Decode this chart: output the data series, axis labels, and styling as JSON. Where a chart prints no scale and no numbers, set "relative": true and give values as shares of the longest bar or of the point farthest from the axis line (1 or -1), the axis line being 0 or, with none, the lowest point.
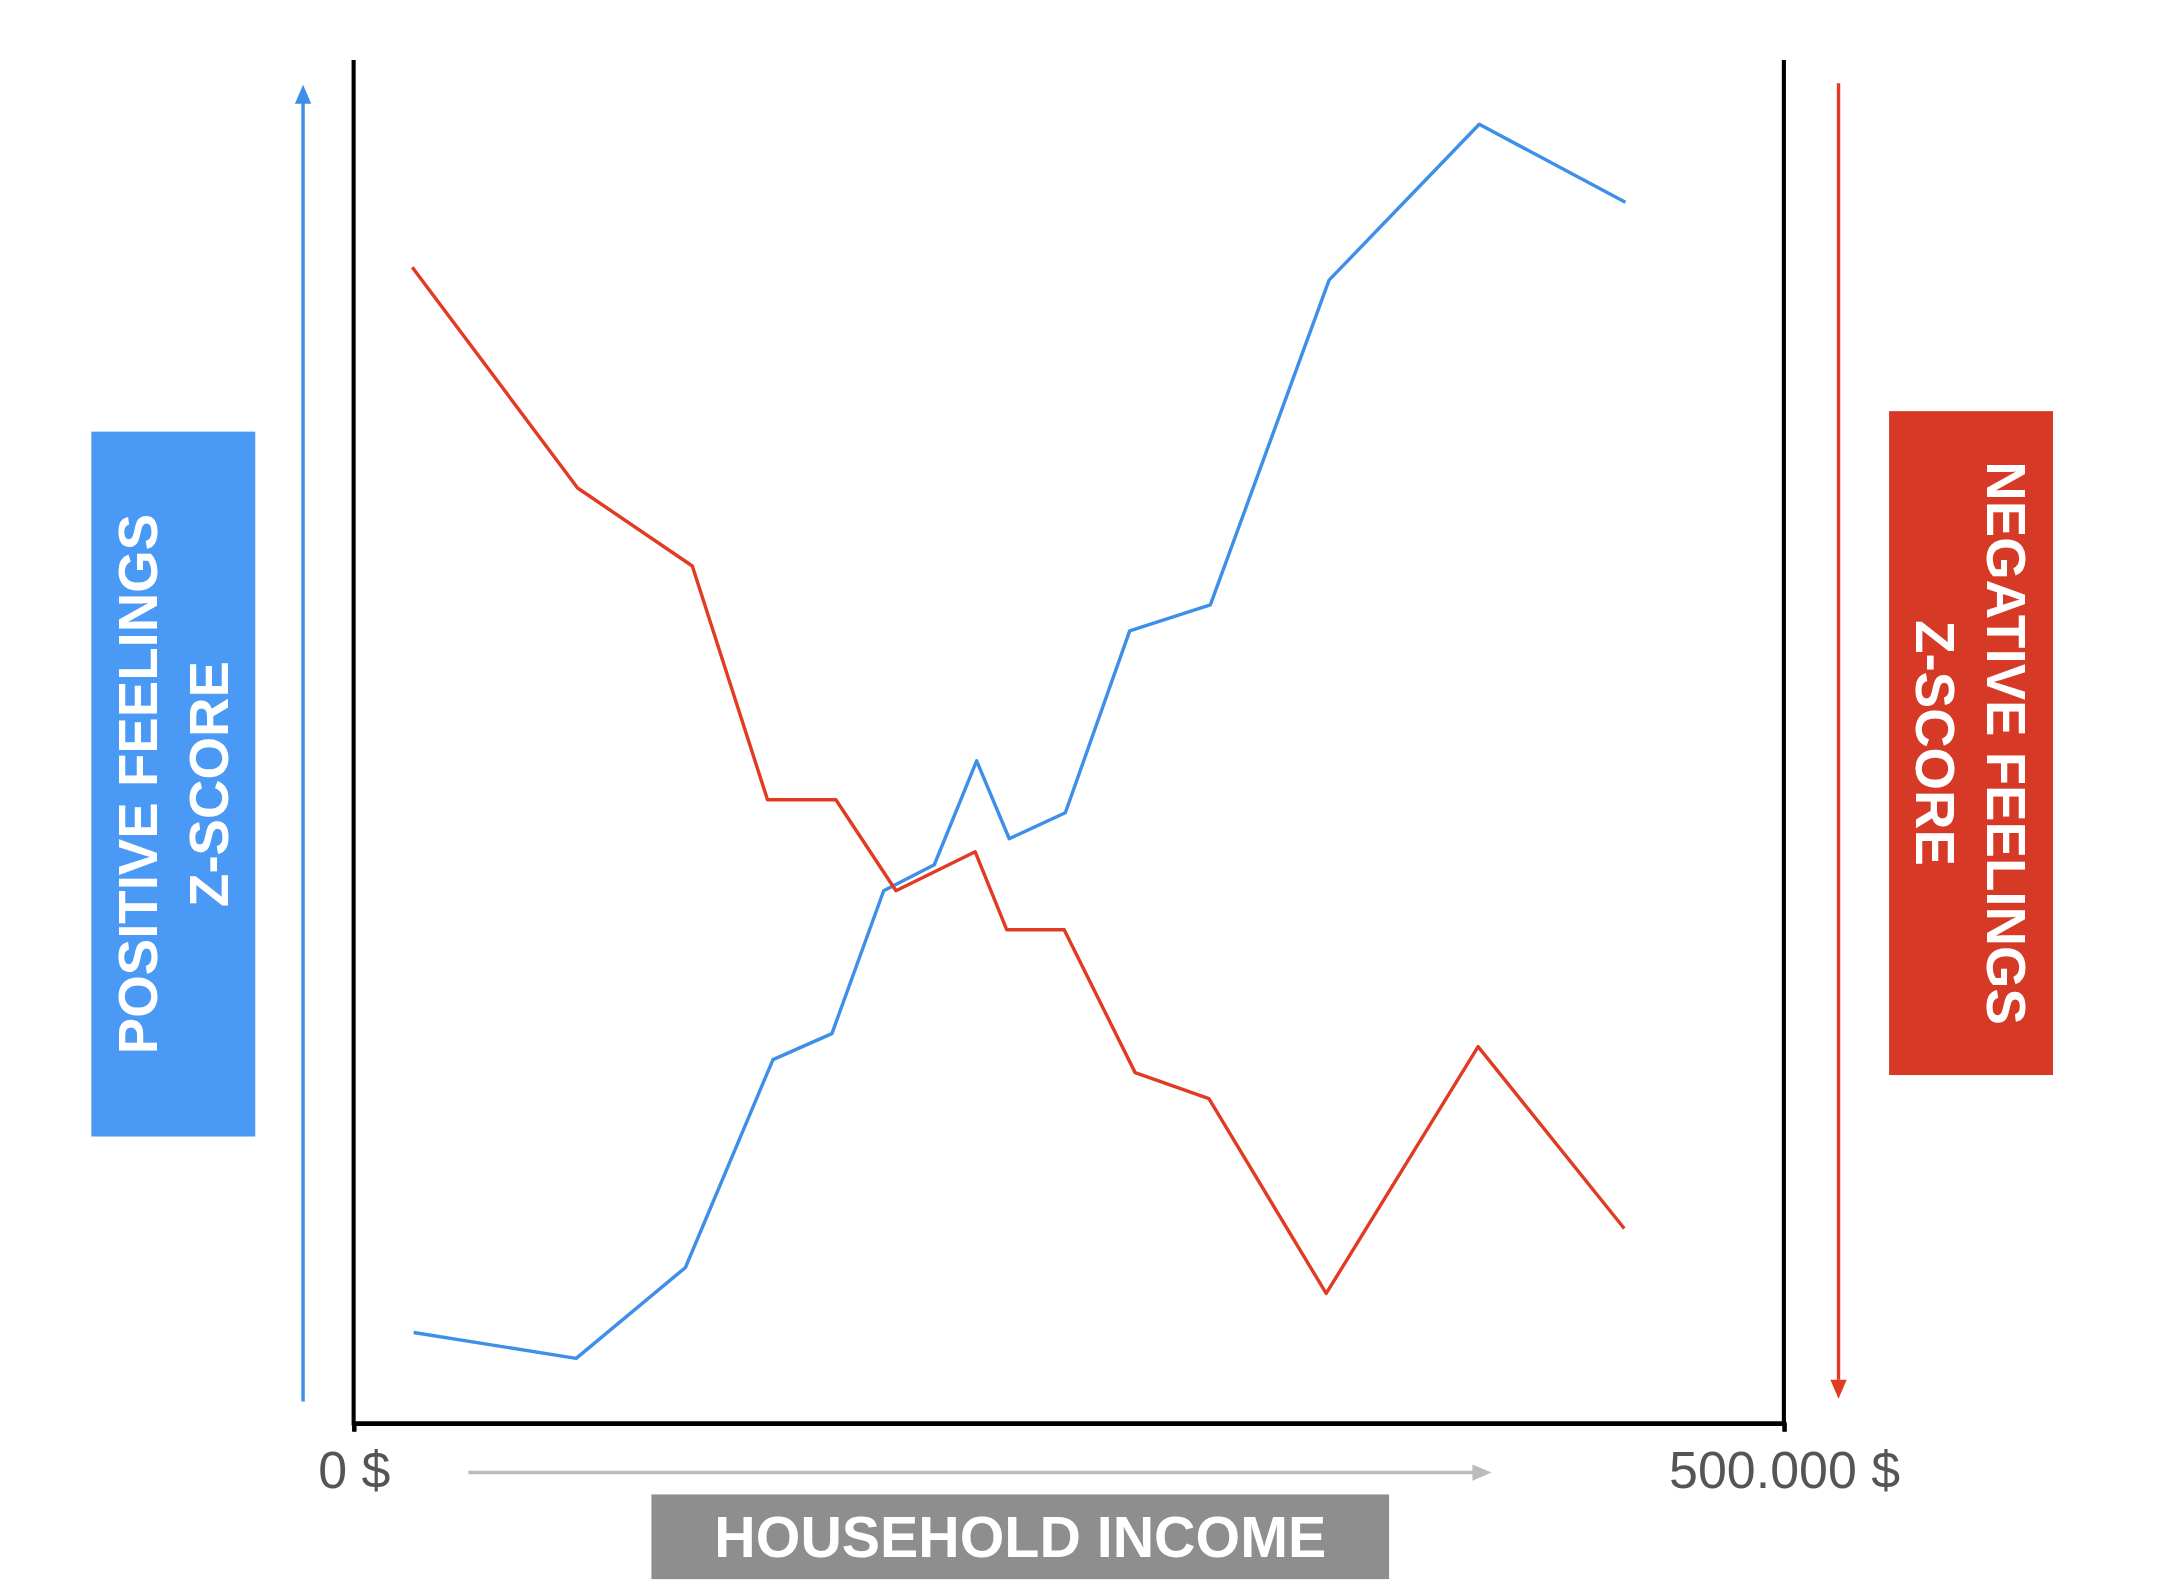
{
  "chart_data": {
    "type": "line",
    "relative": true,
    "xlabel": "HOUSEHOLD INCOME",
    "ylabel": "POSITIVE FEELINGS\nZ-SCORE",
    "y2label": "NEGATIVE FEELINGS\nZ-SCORE",
    "xlim": [
      0,
      500000
    ],
    "xticks": [
      {
        "value": 0,
        "label": "0 $"
      },
      {
        "value": 500000,
        "label": "500.000 $"
      }
    ],
    "tick_labels": "x",
    "series": [
      {
        "color": "#3d8fe8",
        "x": [
          21000,
          77800,
          116000,
          146600,
          167200,
          185300,
          203000,
          217800,
          229200,
          248800,
          271300,
          299500,
          341000,
          393500,
          444600
        ],
        "values": [
          0.07,
          0.05,
          0.12,
          0.28,
          0.3,
          0.41,
          0.43,
          0.51,
          0.45,
          0.47,
          0.61,
          0.63,
          0.88,
          1,
          0.94
        ]
      },
      {
        "color": "#e23b24",
        "x": [
          20500,
          78300,
          118400,
          144700,
          168600,
          189600,
          217300,
          228300,
          248400,
          273200,
          299000,
          340000,
          393100,
          444200
        ],
        "values": [
          0.89,
          0.72,
          0.66,
          0.48,
          0.48,
          0.41,
          0.44,
          0.38,
          0.38,
          0.27,
          0.25,
          0.1,
          0.29,
          0.15
        ]
      }
    ]
  }
}
